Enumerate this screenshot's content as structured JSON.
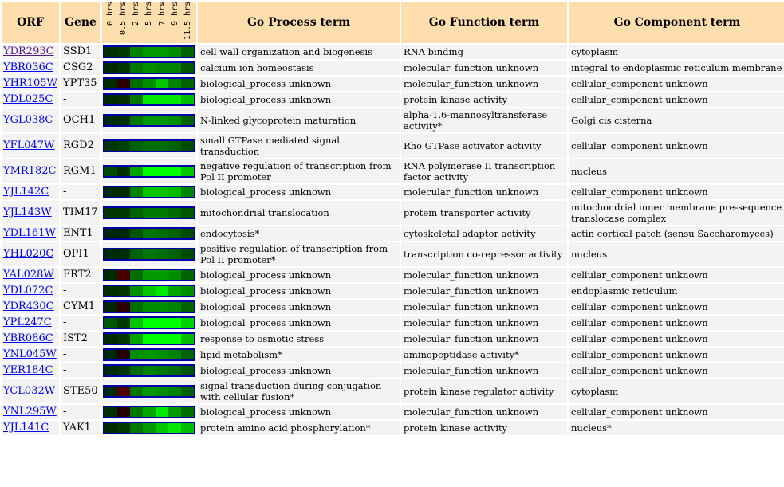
{
  "headers": {
    "orf": "ORF",
    "gene": "Gene",
    "timepoints": [
      "0 hrs",
      "0.5 hrs",
      "2 hrs",
      "5 hrs",
      "7 hrs",
      "9 hrs",
      "11.5 hrs"
    ],
    "process": "Go Process term",
    "function": "Go Function term",
    "component": "Go Component term"
  },
  "colors": {
    "header_bg": "#FFDEAD",
    "row_bg": "#f3f3f3",
    "link": "#0000ee",
    "visited_link": "#551a8b",
    "heatmap_border": "#0000aa"
  },
  "rows": [
    {
      "orf": "YDR293C",
      "visited": true,
      "gene": "SSD1",
      "expr": [
        0.08,
        0.12,
        0.45,
        0.55,
        0.55,
        0.5,
        0.3
      ],
      "process": "cell wall organization and biogenesis",
      "function": "RNA binding",
      "component": "cytoplasm"
    },
    {
      "orf": "YBR036C",
      "gene": "CSG2",
      "expr": [
        0.05,
        0.1,
        0.4,
        0.5,
        0.45,
        0.45,
        0.25
      ],
      "process": "calcium ion homeostasis",
      "function": "molecular_function unknown",
      "component": "integral to endoplasmic reticulum membrane"
    },
    {
      "orf": "YHR105W",
      "gene": "YPT35",
      "expr": [
        0.05,
        -0.15,
        0.35,
        0.5,
        0.75,
        0.45,
        0.3
      ],
      "process": "biological_process unknown",
      "function": "molecular_function unknown",
      "component": "cellular_component unknown"
    },
    {
      "orf": "YDL025C",
      "gene": "-",
      "expr": [
        0.05,
        0.08,
        0.4,
        0.9,
        0.9,
        0.9,
        0.7
      ],
      "process": "biological_process unknown",
      "function": "protein kinase activity",
      "component": "cellular_component unknown"
    },
    {
      "orf": "YGL038C",
      "gene": "OCH1",
      "expr": [
        0.05,
        0.08,
        0.4,
        0.55,
        0.55,
        0.5,
        0.3
      ],
      "process": "N-linked glycoprotein maturation",
      "function": "alpha-1,6-mannosyltransferase activity*",
      "component": "Golgi cis cisterna"
    },
    {
      "orf": "YFL047W",
      "gene": "RGD2",
      "expr": [
        0.1,
        0.15,
        0.3,
        0.35,
        0.35,
        0.3,
        0.2
      ],
      "process": "small GTPase mediated signal transduction",
      "function": "Rho GTPase activator activity",
      "component": "cellular_component unknown"
    },
    {
      "orf": "YMR182C",
      "gene": "RGM1",
      "expr": [
        0.2,
        0.08,
        0.6,
        1.0,
        1.0,
        1.0,
        0.75
      ],
      "process": "negative regulation of transcription from Pol II promoter",
      "function": "RNA polymerase II transcription factor activity",
      "component": "nucleus"
    },
    {
      "orf": "YJL142C",
      "gene": "-",
      "expr": [
        0.05,
        0.05,
        0.45,
        0.75,
        0.75,
        0.7,
        0.45
      ],
      "process": "biological_process unknown",
      "function": "molecular_function unknown",
      "component": "cellular_component unknown"
    },
    {
      "orf": "YJL143W",
      "gene": "TIM17",
      "expr": [
        0.1,
        0.12,
        0.3,
        0.4,
        0.4,
        0.35,
        0.25
      ],
      "process": "mitochondrial translocation",
      "function": "protein transporter activity",
      "component": "mitochondrial inner membrane pre-sequence translocase complex"
    },
    {
      "orf": "YDL161W",
      "gene": "ENT1",
      "expr": [
        0.03,
        0.05,
        0.25,
        0.4,
        0.35,
        0.3,
        0.2
      ],
      "process": "endocytosis*",
      "function": "cytoskeletal adaptor activity",
      "component": "actin cortical patch (sensu Saccharomyces)"
    },
    {
      "orf": "YHL020C",
      "gene": "OPI1",
      "expr": [
        0.05,
        0.06,
        0.3,
        0.4,
        0.35,
        0.3,
        0.2
      ],
      "process": "positive regulation of transcription from Pol II promoter*",
      "function": "transcription co-repressor activity",
      "component": "nucleus"
    },
    {
      "orf": "YAL028W",
      "gene": "FRT2",
      "expr": [
        0.05,
        -0.3,
        0.35,
        0.55,
        0.55,
        0.5,
        0.3
      ],
      "process": "biological_process unknown",
      "function": "molecular_function unknown",
      "component": "cellular_component unknown"
    },
    {
      "orf": "YDL072C",
      "gene": "-",
      "expr": [
        0.08,
        0.1,
        0.5,
        0.75,
        0.9,
        0.6,
        0.5
      ],
      "process": "biological_process unknown",
      "function": "molecular_function unknown",
      "component": "endoplasmic reticulum"
    },
    {
      "orf": "YDR430C",
      "gene": "CYM1",
      "expr": [
        0.04,
        -0.15,
        0.35,
        0.5,
        0.5,
        0.45,
        0.3
      ],
      "process": "biological_process unknown",
      "function": "molecular_function unknown",
      "component": "cellular_component unknown"
    },
    {
      "orf": "YPL247C",
      "gene": "-",
      "expr": [
        0.25,
        0.12,
        0.75,
        1.0,
        1.0,
        1.0,
        0.8
      ],
      "process": "biological_process unknown",
      "function": "molecular_function unknown",
      "component": "cellular_component unknown"
    },
    {
      "orf": "YBR086C",
      "gene": "IST2",
      "expr": [
        0.05,
        0.1,
        0.6,
        1.0,
        1.0,
        1.0,
        0.7
      ],
      "process": "response to osmotic stress",
      "function": "molecular_function unknown",
      "component": "cellular_component unknown"
    },
    {
      "orf": "YNL045W",
      "gene": "-",
      "expr": [
        0.05,
        -0.1,
        0.5,
        0.55,
        0.5,
        0.45,
        0.3
      ],
      "process": "lipid metabolism*",
      "function": "aminopeptidase activity*",
      "component": "cellular_component unknown"
    },
    {
      "orf": "YER184C",
      "gene": "-",
      "expr": [
        0.05,
        0.1,
        0.35,
        0.45,
        0.4,
        0.35,
        0.25
      ],
      "process": "biological_process unknown",
      "function": "molecular_function unknown",
      "component": "cellular_component unknown"
    },
    {
      "orf": "YCL032W",
      "gene": "STE50",
      "expr": [
        0.05,
        -0.35,
        0.4,
        0.55,
        0.5,
        0.45,
        0.3
      ],
      "process": "signal transduction during conjugation with cellular fusion*",
      "function": "protein kinase regulator activity",
      "component": "cytoplasm"
    },
    {
      "orf": "YNL295W",
      "gene": "-",
      "expr": [
        0.08,
        -0.1,
        0.4,
        0.6,
        0.9,
        0.55,
        0.35
      ],
      "process": "biological_process unknown",
      "function": "molecular_function unknown",
      "component": "cellular_component unknown"
    },
    {
      "orf": "YJL141C",
      "gene": "YAK1",
      "expr": [
        0.05,
        0.12,
        0.4,
        0.55,
        0.75,
        0.9,
        0.7
      ],
      "process": "protein amino acid phosphorylation*",
      "function": "protein kinase activity",
      "component": "nucleus*"
    }
  ]
}
